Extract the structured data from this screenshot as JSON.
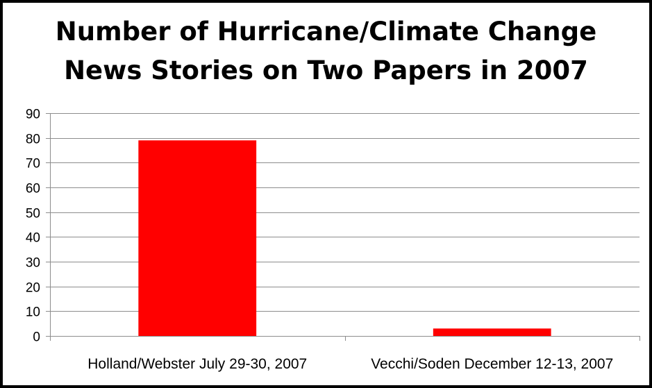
{
  "chart_data": {
    "type": "bar",
    "title_lines": [
      "Number of Hurricane/Climate Change",
      "News Stories on Two Papers in 2007"
    ],
    "categories": [
      "Holland/Webster July 29-30, 2007",
      "Vecchi/Soden December 12-13, 2007"
    ],
    "values": [
      79,
      3
    ],
    "yticks": [
      "0",
      "10",
      "20",
      "30",
      "40",
      "50",
      "60",
      "70",
      "80",
      "90"
    ],
    "ylim": [
      0,
      90
    ],
    "grid": true,
    "bar_color": "#ff0000",
    "grid_color": "#8c8c8c",
    "legend": "none"
  }
}
